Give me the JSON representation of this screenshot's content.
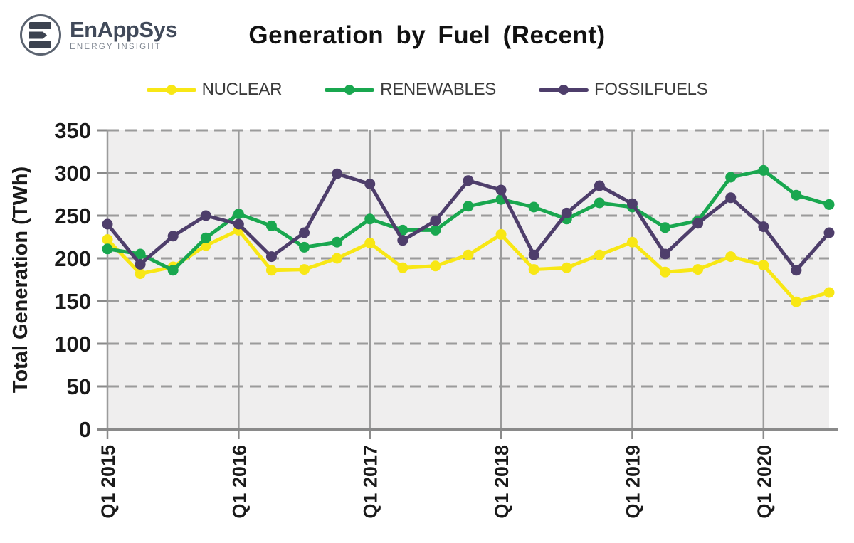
{
  "logo": {
    "name": "EnAppSys",
    "tagline": "ENERGY INSIGHT",
    "mark_color": "#3c4350",
    "ring_color": "#5b6370"
  },
  "title": "Generation by Fuel (Recent)",
  "colors": {
    "nuclear": "#f8e715",
    "renewables": "#19a74f",
    "fossilfuels": "#4e3e6b",
    "plot_background": "#efeeee",
    "gridline": "#9b9b9b",
    "axis": "#8a8a8a",
    "tick_text": "#1a1a1a",
    "legend_text": "#3b3b3b"
  },
  "chart_data": {
    "type": "line",
    "title": "Generation by Fuel (Recent)",
    "ylabel": "Total Generation (TWh)",
    "xlabel": "",
    "ylim": [
      0,
      350
    ],
    "ytick_step": 50,
    "x_tick_every": 4,
    "grid": true,
    "legend_position": "top",
    "x": [
      "Q1 2015",
      "Q2 2015",
      "Q3 2015",
      "Q4 2015",
      "Q1 2016",
      "Q2 2016",
      "Q3 2016",
      "Q4 2016",
      "Q1 2017",
      "Q2 2017",
      "Q3 2017",
      "Q4 2017",
      "Q1 2018",
      "Q2 2018",
      "Q3 2018",
      "Q4 2018",
      "Q1 2019",
      "Q2 2019",
      "Q3 2019",
      "Q4 2019",
      "Q1 2020",
      "Q2 2020",
      "Q3 2020"
    ],
    "x_tick_labels": [
      "Q1 2015",
      "Q1 2016",
      "Q1 2017",
      "Q1 2018",
      "Q1 2019",
      "Q1 2020"
    ],
    "series": [
      {
        "name": "NUCLEAR",
        "color": "#f8e715",
        "values": [
          222,
          182,
          190,
          215,
          233,
          186,
          187,
          200,
          218,
          189,
          191,
          204,
          228,
          187,
          189,
          204,
          219,
          184,
          187,
          202,
          192,
          149,
          160
        ]
      },
      {
        "name": "RENEWABLES",
        "color": "#19a74f",
        "values": [
          211,
          205,
          186,
          224,
          252,
          238,
          213,
          219,
          246,
          233,
          233,
          261,
          269,
          260,
          246,
          265,
          260,
          236,
          244,
          295,
          303,
          274,
          263
        ]
      },
      {
        "name": "FOSSILFUELS",
        "color": "#4e3e6b",
        "values": [
          240,
          193,
          226,
          250,
          240,
          202,
          230,
          299,
          287,
          221,
          244,
          291,
          280,
          204,
          253,
          285,
          264,
          205,
          241,
          271,
          237,
          186,
          230
        ]
      }
    ]
  }
}
